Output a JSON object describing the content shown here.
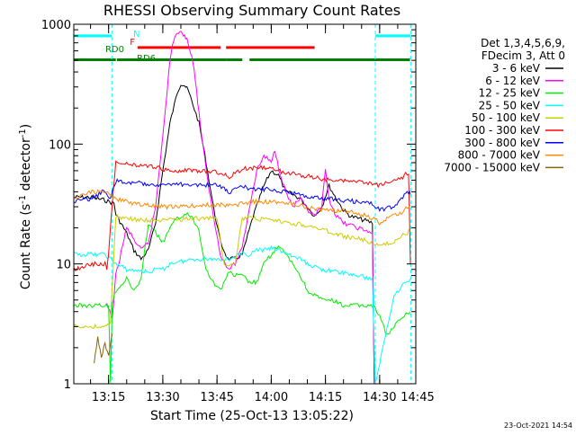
{
  "chart_data": {
    "type": "line",
    "title": "RHESSI Observing Summary Count Rates",
    "xlabel": "Start Time (25-Oct-13 13:05:22)",
    "ylabel_main": "Count Rate (s",
    "ylabel_sup1": "-1",
    "ylabel_mid": " detector",
    "ylabel_sup2": "-1",
    "ylabel_end": ")",
    "yscale": "log",
    "ylim": [
      1,
      1000
    ],
    "xlim_minutes": [
      5.37,
      100
    ],
    "x_unit": "minutes after 13:00 UT",
    "yticks": [
      {
        "value": 1,
        "label": "1"
      },
      {
        "value": 10,
        "label": "10"
      },
      {
        "value": 100,
        "label": "100"
      },
      {
        "value": 1000,
        "label": "1000"
      }
    ],
    "xticks": [
      {
        "value": 15,
        "label": "13:15"
      },
      {
        "value": 30,
        "label": "13:30"
      },
      {
        "value": 45,
        "label": "13:45"
      },
      {
        "value": 60,
        "label": "14:00"
      },
      {
        "value": 75,
        "label": "14:15"
      },
      {
        "value": 90,
        "label": "14:30"
      },
      {
        "value": 105,
        "label": "14:45"
      }
    ],
    "legend": {
      "header1": "Det 1,3,4,5,6,9,",
      "header2": "FDecim 3, Att 0",
      "position": "right",
      "entries": [
        {
          "label": "3 - 6 keV",
          "color": "#000000"
        },
        {
          "label": "6 - 12 keV",
          "color": "#ff00ff"
        },
        {
          "label": "12 - 25 keV",
          "color": "#00ee00"
        },
        {
          "label": "25 - 50 keV",
          "color": "#00ffff"
        },
        {
          "label": "50 - 100 keV",
          "color": "#cccc00"
        },
        {
          "label": "100 - 300 keV",
          "color": "#ff0000"
        },
        {
          "label": "300 - 800 keV",
          "color": "#0000ff"
        },
        {
          "label": "800 - 7000 keV",
          "color": "#ff8800"
        },
        {
          "label": "7000 - 15000 keV",
          "color": "#886600"
        }
      ]
    },
    "flag_labels": [
      {
        "text": "N",
        "color": "#00ffff"
      },
      {
        "text": "F",
        "color": "#ff0000"
      },
      {
        "text": "RD0",
        "color": "#008000"
      },
      {
        "text": "RD6",
        "color": "#008000"
      }
    ],
    "flag_bars": [
      {
        "flag": "N",
        "color": "#00ffff",
        "level": 800,
        "segments": [
          [
            5.4,
            15.9
          ],
          [
            88.8,
            98.6
          ]
        ]
      },
      {
        "flag": "F",
        "color": "#ff0000",
        "level": 640,
        "segments": [
          [
            23,
            46
          ],
          [
            47.5,
            72
          ]
        ]
      },
      {
        "flag": "RD0",
        "color": "#008000",
        "level": 505,
        "segments": [
          [
            5.4,
            17
          ],
          [
            17.3,
            47.5
          ]
        ]
      },
      {
        "flag": "RD6",
        "color": "#008000",
        "level": 505,
        "segments": [
          [
            47.5,
            52
          ],
          [
            54,
            98.4
          ]
        ]
      }
    ],
    "series": [
      {
        "name": "3 - 6 keV",
        "color": "#000000",
        "x": [
          5.4,
          10,
          14,
          16.5,
          17,
          20,
          22,
          24,
          26,
          28,
          30,
          32,
          34,
          35,
          36,
          37,
          38,
          40,
          42,
          44,
          46,
          48,
          50,
          52,
          55,
          58,
          60,
          62,
          64,
          66,
          68,
          70,
          72,
          74,
          76,
          78,
          80,
          82,
          84,
          86,
          88,
          88.5
        ],
        "y": [
          36,
          36,
          34,
          32,
          26,
          18,
          13,
          11,
          13,
          22,
          60,
          150,
          270,
          320,
          310,
          280,
          230,
          150,
          70,
          30,
          15,
          11,
          11,
          12,
          25,
          45,
          60,
          55,
          40,
          38,
          35,
          30,
          25,
          30,
          45,
          35,
          28,
          25,
          24,
          23,
          22,
          1
        ]
      },
      {
        "name": "6 - 12 keV",
        "color": "#ff00ff",
        "x": [
          14.5,
          15,
          16,
          17,
          20,
          22,
          24,
          26,
          28,
          30,
          32,
          33,
          34,
          35,
          36,
          37,
          38,
          39,
          40,
          42,
          44,
          46,
          48,
          50,
          52,
          54,
          56,
          58,
          60,
          61,
          62,
          64,
          66,
          68,
          70,
          72,
          74,
          75,
          76,
          78,
          80,
          82,
          84,
          86,
          88,
          88.5
        ],
        "y": [
          4.5,
          4.2,
          3.5,
          8,
          20,
          16,
          13,
          15,
          30,
          120,
          500,
          750,
          850,
          840,
          820,
          700,
          550,
          350,
          180,
          60,
          25,
          12,
          9,
          10,
          14,
          30,
          60,
          80,
          70,
          90,
          65,
          40,
          30,
          35,
          28,
          25,
          30,
          60,
          35,
          25,
          22,
          21,
          20,
          19,
          18,
          1
        ]
      },
      {
        "name": "12 - 25 keV",
        "color": "#00ee00",
        "x": [
          5.4,
          14,
          15,
          15.5,
          16,
          17,
          20,
          22,
          24,
          26,
          30,
          32,
          34,
          36,
          38,
          40,
          42,
          44,
          46,
          48,
          50,
          52,
          54,
          56,
          58,
          60,
          62,
          64,
          66,
          68,
          70,
          72,
          74,
          76,
          78,
          80,
          82,
          84,
          86,
          88,
          90,
          92,
          94,
          96,
          98.5
        ],
        "y": [
          4.5,
          4.5,
          4.5,
          1,
          4.8,
          6,
          7.5,
          6,
          7.4,
          22,
          15,
          20,
          24,
          26,
          25,
          19,
          9,
          7,
          6,
          8.5,
          8,
          8,
          7,
          7,
          10,
          12,
          14,
          12,
          10,
          8,
          6,
          5.5,
          5,
          5,
          4.8,
          4.5,
          4.5,
          4.5,
          4.5,
          4.5,
          3.8,
          2.5,
          3,
          3.5,
          4
        ]
      },
      {
        "name": "25 - 50 keV",
        "color": "#00ffff",
        "x": [
          5.4,
          14,
          15.5,
          17,
          20,
          22,
          24,
          26,
          28,
          30,
          32,
          34,
          36,
          38,
          40,
          42,
          44,
          46,
          48,
          50,
          52,
          54,
          56,
          58,
          60,
          62,
          64,
          66,
          68,
          70,
          72,
          74,
          76,
          78,
          80,
          82,
          84,
          86,
          88,
          88.8,
          94,
          96,
          98.5
        ],
        "y": [
          12,
          12,
          11,
          10,
          9,
          8.8,
          8.8,
          8.5,
          9,
          9,
          10,
          10.5,
          10.5,
          11,
          11,
          11,
          11,
          11,
          11,
          11.5,
          12,
          12,
          13,
          13,
          13.5,
          13,
          12.5,
          11.5,
          11,
          10,
          9.5,
          9,
          8.8,
          8.6,
          8.4,
          8.2,
          8,
          7.7,
          7.5,
          1,
          5.5,
          6.5,
          7.5
        ]
      },
      {
        "name": "50 - 100 keV",
        "color": "#cccc00",
        "x": [
          5.4,
          14,
          15.5,
          17,
          20,
          25,
          30,
          35,
          40,
          45,
          47,
          48,
          50,
          52,
          55,
          60,
          65,
          70,
          75,
          80,
          85,
          88,
          90,
          94,
          98.5
        ],
        "y": [
          3,
          3,
          3.2,
          25,
          24,
          23,
          23,
          23.5,
          24,
          24,
          10,
          10,
          10,
          24,
          24,
          23,
          22,
          21,
          19,
          17,
          16,
          15,
          14,
          15.5,
          19
        ]
      },
      {
        "name": "100 - 300 keV",
        "color": "#ff0000",
        "x": [
          5.4,
          10,
          14,
          14.5,
          15,
          16,
          17,
          20,
          25,
          30,
          35,
          40,
          45,
          47,
          48,
          52,
          56,
          60,
          64,
          68,
          72,
          76,
          80,
          84,
          88,
          90,
          92,
          94,
          96,
          98,
          98.5
        ],
        "y": [
          9,
          10,
          10,
          9,
          12,
          32,
          70,
          68,
          66,
          62,
          60,
          60,
          58,
          57,
          52,
          62,
          64,
          62,
          58,
          55,
          53,
          50,
          49,
          48,
          47,
          45,
          48,
          50,
          52,
          58,
          10
        ]
      },
      {
        "name": "300 - 800 keV",
        "color": "#0000ff",
        "x": [
          5.4,
          10,
          14,
          15.5,
          17,
          20,
          25,
          30,
          35,
          40,
          45,
          47,
          48,
          52,
          56,
          60,
          64,
          68,
          72,
          76,
          80,
          84,
          88,
          90,
          94,
          98,
          98.5
        ],
        "y": [
          33,
          35,
          41,
          35,
          49,
          48,
          47,
          46,
          46,
          46,
          45,
          44,
          39,
          44,
          42,
          42,
          40,
          38,
          36,
          35,
          34,
          33,
          32,
          28,
          30,
          40,
          38
        ]
      },
      {
        "name": "800 - 7000 keV",
        "color": "#ff8800",
        "x": [
          5.4,
          10,
          14,
          17,
          20,
          25,
          30,
          35,
          40,
          45,
          50,
          55,
          60,
          65,
          70,
          75,
          80,
          85,
          88,
          90,
          92,
          94,
          96,
          98.5
        ],
        "y": [
          35,
          40,
          40,
          35,
          33,
          31,
          30,
          30,
          31,
          31,
          31,
          33,
          33,
          32,
          30,
          28,
          28,
          26,
          24,
          22,
          24,
          25,
          27,
          31
        ]
      },
      {
        "name": "7000 - 15000 keV",
        "color": "#886600",
        "x": [
          11,
          12,
          13,
          14,
          15,
          16
        ],
        "y": [
          1.5,
          2.5,
          1.6,
          2.2,
          1.7,
          2.6
        ]
      }
    ]
  },
  "timestamp": "23-Oct-2021 14:54"
}
